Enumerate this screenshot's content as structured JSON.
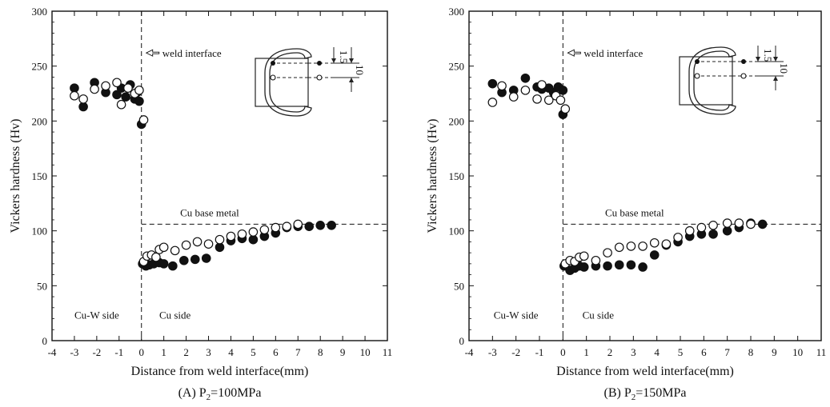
{
  "chart_data": [
    {
      "type": "scatter",
      "caption": {
        "prefix": "(A) P",
        "sub": "2",
        "suffix": "=100MPa"
      },
      "xlabel": "Distance from weld interface(mm)",
      "ylabel": "Vickers hardness (Hv)",
      "xlim": [
        -4,
        11
      ],
      "ylim": [
        0,
        300
      ],
      "xticks": [
        -4,
        -3,
        -2,
        -1,
        0,
        1,
        2,
        3,
        4,
        5,
        6,
        7,
        8,
        9,
        10,
        11
      ],
      "yticks": [
        0,
        50,
        100,
        150,
        200,
        250,
        300
      ],
      "grid": false,
      "annotations": {
        "weld_interface": "weld interface",
        "base_metal": "Cu base metal",
        "left_side": "Cu-W side",
        "right_side": "Cu side",
        "dim_a": "1.5",
        "dim_b": "10"
      },
      "base_metal_level": 106,
      "series": [
        {
          "marker": "filled",
          "points": [
            [
              -3.0,
              230
            ],
            [
              -2.6,
              213
            ],
            [
              -2.1,
              235
            ],
            [
              -1.6,
              226
            ],
            [
              -1.1,
              224
            ],
            [
              -0.9,
              230
            ],
            [
              -0.7,
              222
            ],
            [
              -0.5,
              233
            ],
            [
              -0.3,
              220
            ],
            [
              -0.2,
              226
            ],
            [
              -0.1,
              218
            ],
            [
              0.0,
              197
            ],
            [
              0.05,
              70
            ],
            [
              0.2,
              68
            ],
            [
              0.35,
              69
            ],
            [
              0.55,
              70
            ],
            [
              0.8,
              71
            ],
            [
              1.0,
              70
            ],
            [
              1.4,
              68
            ],
            [
              1.9,
              73
            ],
            [
              2.4,
              74
            ],
            [
              2.9,
              75
            ],
            [
              3.5,
              85
            ],
            [
              4.0,
              91
            ],
            [
              4.5,
              93
            ],
            [
              5.0,
              92
            ],
            [
              5.5,
              95
            ],
            [
              6.0,
              98
            ],
            [
              6.5,
              103
            ],
            [
              7.0,
              104
            ],
            [
              7.5,
              104
            ],
            [
              8.0,
              105
            ],
            [
              8.5,
              105
            ]
          ]
        },
        {
          "marker": "open",
          "points": [
            [
              -3.0,
              223
            ],
            [
              -2.6,
              220
            ],
            [
              -2.1,
              229
            ],
            [
              -1.6,
              232
            ],
            [
              -1.1,
              235
            ],
            [
              -0.9,
              215
            ],
            [
              -0.6,
              230
            ],
            [
              -0.3,
              225
            ],
            [
              -0.1,
              228
            ],
            [
              0.1,
              201
            ],
            [
              0.1,
              72
            ],
            [
              0.25,
              77
            ],
            [
              0.45,
              78
            ],
            [
              0.65,
              76
            ],
            [
              0.8,
              83
            ],
            [
              1.0,
              85
            ],
            [
              1.5,
              82
            ],
            [
              2.0,
              87
            ],
            [
              2.5,
              90
            ],
            [
              3.0,
              88
            ],
            [
              3.5,
              92
            ],
            [
              4.0,
              95
            ],
            [
              4.5,
              97
            ],
            [
              5.0,
              99
            ],
            [
              5.5,
              101
            ],
            [
              6.0,
              103
            ],
            [
              6.5,
              104
            ],
            [
              7.0,
              106
            ]
          ]
        }
      ]
    },
    {
      "type": "scatter",
      "caption": {
        "prefix": "(B) P",
        "sub": "2",
        "suffix": "=150MPa"
      },
      "xlabel": "Distance from weld interface(mm)",
      "ylabel": "Vickers hardness (Hv)",
      "xlim": [
        -4,
        11
      ],
      "ylim": [
        0,
        300
      ],
      "xticks": [
        -4,
        -3,
        -2,
        -1,
        0,
        1,
        2,
        3,
        4,
        5,
        6,
        7,
        8,
        9,
        10,
        11
      ],
      "yticks": [
        0,
        50,
        100,
        150,
        200,
        250,
        300
      ],
      "grid": false,
      "annotations": {
        "weld_interface": "weld interface",
        "base_metal": "Cu base metal",
        "left_side": "Cu-W side",
        "right_side": "Cu side",
        "dim_a": "1.5",
        "dim_b": "10"
      },
      "base_metal_level": 106,
      "series": [
        {
          "marker": "filled",
          "points": [
            [
              -3.0,
              234
            ],
            [
              -2.6,
              226
            ],
            [
              -2.1,
              228
            ],
            [
              -1.6,
              239
            ],
            [
              -1.1,
              231
            ],
            [
              -0.9,
              229
            ],
            [
              -0.6,
              230
            ],
            [
              -0.4,
              226
            ],
            [
              -0.2,
              231
            ],
            [
              0.0,
              228
            ],
            [
              0.0,
              206
            ],
            [
              0.05,
              68
            ],
            [
              0.3,
              64
            ],
            [
              0.5,
              66
            ],
            [
              0.7,
              68
            ],
            [
              0.9,
              67
            ],
            [
              1.4,
              68
            ],
            [
              1.9,
              68
            ],
            [
              2.4,
              69
            ],
            [
              2.9,
              69
            ],
            [
              3.4,
              67
            ],
            [
              3.9,
              78
            ],
            [
              4.4,
              87
            ],
            [
              4.9,
              90
            ],
            [
              5.4,
              95
            ],
            [
              5.9,
              97
            ],
            [
              6.4,
              97
            ],
            [
              7.0,
              100
            ],
            [
              7.5,
              103
            ],
            [
              8.0,
              107
            ],
            [
              8.5,
              106
            ]
          ]
        },
        {
          "marker": "open",
          "points": [
            [
              -3.0,
              217
            ],
            [
              -2.6,
              232
            ],
            [
              -2.1,
              222
            ],
            [
              -1.6,
              228
            ],
            [
              -1.1,
              220
            ],
            [
              -0.9,
              233
            ],
            [
              -0.6,
              219
            ],
            [
              -0.3,
              223
            ],
            [
              -0.1,
              219
            ],
            [
              0.1,
              211
            ],
            [
              0.1,
              70
            ],
            [
              0.3,
              73
            ],
            [
              0.5,
              72
            ],
            [
              0.7,
              76
            ],
            [
              0.9,
              77
            ],
            [
              1.4,
              73
            ],
            [
              1.9,
              80
            ],
            [
              2.4,
              85
            ],
            [
              2.9,
              86
            ],
            [
              3.4,
              86
            ],
            [
              3.9,
              89
            ],
            [
              4.4,
              88
            ],
            [
              4.9,
              94
            ],
            [
              5.4,
              100
            ],
            [
              5.9,
              103
            ],
            [
              6.4,
              105
            ],
            [
              7.0,
              107
            ],
            [
              7.5,
              107
            ],
            [
              8.0,
              106
            ]
          ]
        }
      ]
    }
  ]
}
